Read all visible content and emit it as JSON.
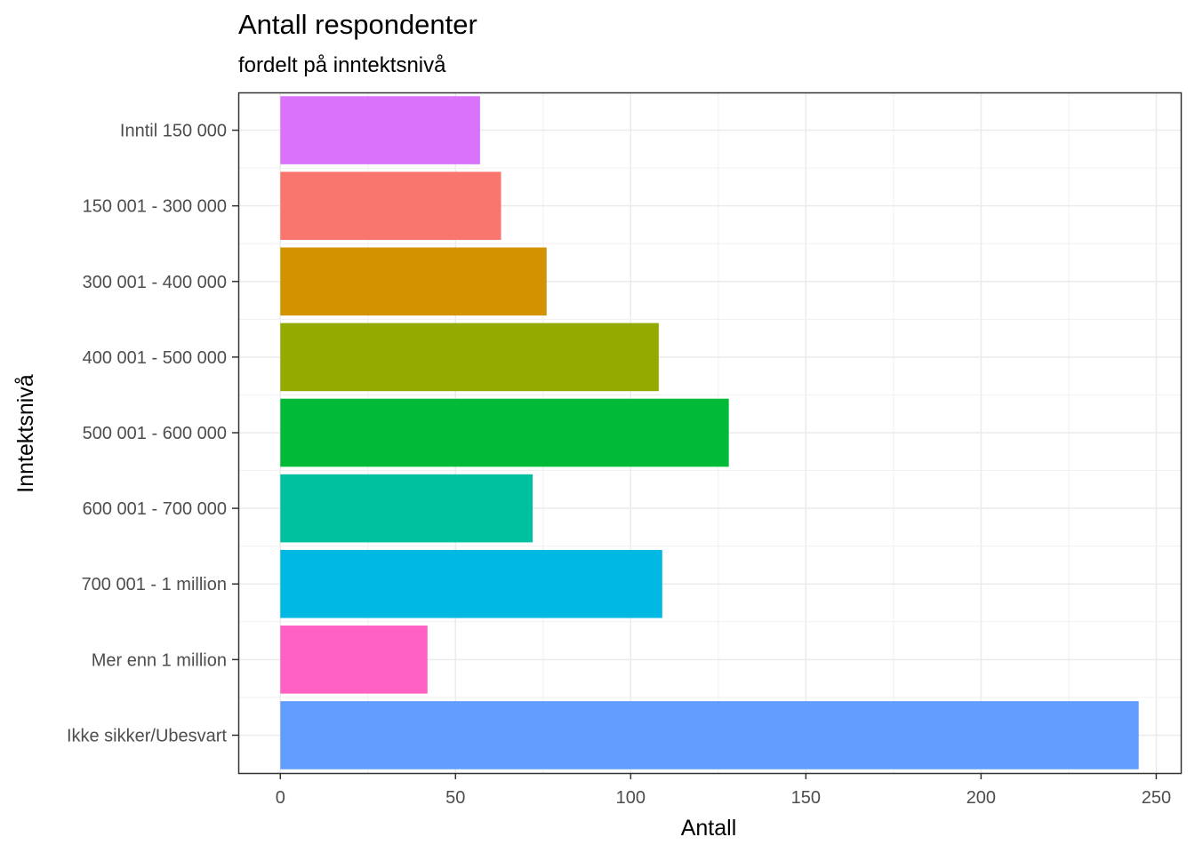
{
  "chart_data": {
    "type": "bar",
    "orientation": "horizontal",
    "title": "Antall respondenter",
    "subtitle": "fordelt på inntektsnivå",
    "xlabel": "Antall",
    "ylabel": "Inntektsnivå",
    "xlim": [
      -12,
      257
    ],
    "x_ticks": [
      0,
      50,
      100,
      150,
      200,
      250
    ],
    "grid": true,
    "categories": [
      "Inntil 150 000",
      "150 001 - 300 000",
      "300 001 - 400 000",
      "400 001 - 500 000",
      "500 001 - 600 000",
      "600 001 - 700 000",
      "700 001 - 1 million",
      "Mer enn 1 million",
      "Ikke sikker/Ubesvart"
    ],
    "values": [
      57,
      63,
      76,
      108,
      128,
      72,
      109,
      42,
      245
    ],
    "colors": [
      "#DB72FB",
      "#F8766D",
      "#D39200",
      "#93AA00",
      "#00BA38",
      "#00C19F",
      "#00B9E3",
      "#FF61C3",
      "#619CFF"
    ]
  }
}
